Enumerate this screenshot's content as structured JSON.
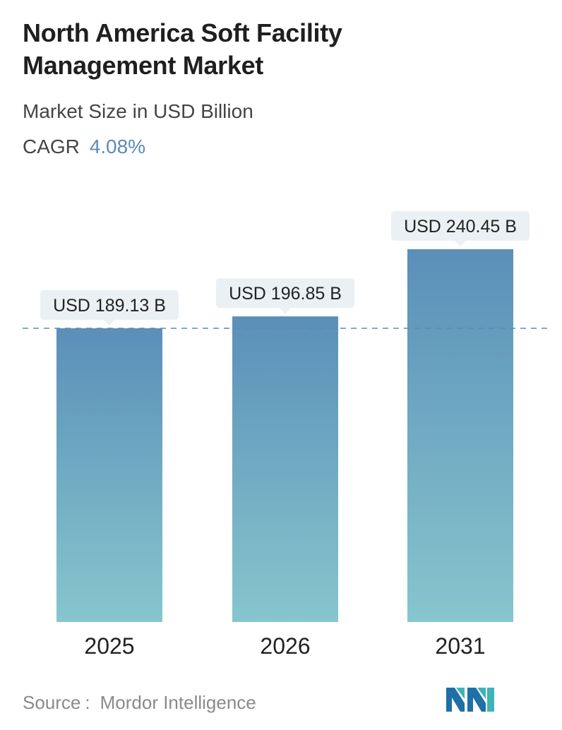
{
  "title_line1": "North America Soft Facility",
  "title_line2": "Management Market",
  "subtitle": "Market Size in USD Billion",
  "cagr": {
    "label": "CAGR",
    "value": "4.08%"
  },
  "source": {
    "label": "Source",
    "separator": ":",
    "name": "Mordor Intelligence"
  },
  "colors": {
    "bar_top": "#5b8fb9",
    "bar_bottom": "#86c6cd",
    "label_bg": "#eaf0f3",
    "dashed_line": "#5b8bb5",
    "accent": "#5b8bb5"
  },
  "chart_data": {
    "type": "bar",
    "categories": [
      "2025",
      "2026",
      "2031"
    ],
    "values": [
      189.13,
      196.85,
      240.45
    ],
    "value_labels": [
      "USD 189.13 B",
      "USD 196.85 B",
      "USD 240.45 B"
    ],
    "reference_line": 189.13,
    "grid": false,
    "legend": "none"
  }
}
